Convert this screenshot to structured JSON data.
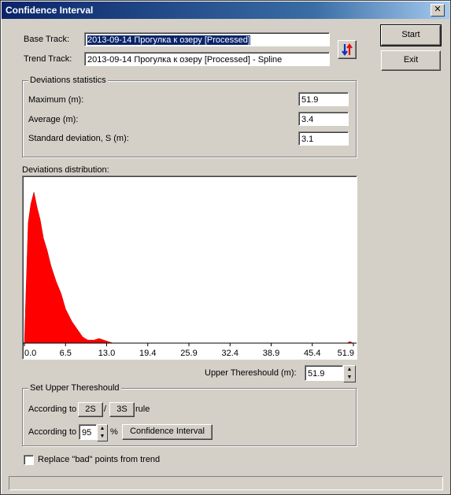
{
  "window": {
    "title": "Confidence Interval"
  },
  "tracks": {
    "base_label": "Base Track:",
    "base_value": "2013-09-14 Прогулка к озеру [Processed]",
    "trend_label": "Trend Track:",
    "trend_value": "2013-09-14 Прогулка к озеру [Processed] - Spline"
  },
  "buttons": {
    "start": "Start",
    "exit": "Exit"
  },
  "stats": {
    "title": "Deviations statistics",
    "maximum_label": "Maximum (m):",
    "maximum_value": "51.9",
    "average_label": "Average (m):",
    "average_value": "3.4",
    "stddev_label": "Standard deviation, S (m):",
    "stddev_value": "3.1"
  },
  "distribution": {
    "title": "Deviations distribution:"
  },
  "chart_data": {
    "type": "area",
    "xlabel": "",
    "ylabel": "",
    "x_ticks": [
      "0.0",
      "6.5",
      "13.0",
      "19.4",
      "25.9",
      "32.4",
      "38.9",
      "45.4",
      "51.9"
    ],
    "xlim": [
      0,
      51.9
    ],
    "color": "#ff0000",
    "x": [
      0.0,
      0.6,
      1.0,
      1.5,
      2.0,
      2.5,
      3.0,
      3.6,
      4.2,
      5.0,
      5.8,
      6.5,
      7.5,
      8.5,
      9.2,
      10.0,
      11.0,
      11.8,
      12.5,
      13.2,
      14.0,
      50.9,
      51.3,
      51.9
    ],
    "y": [
      0.0,
      0.78,
      0.9,
      0.98,
      0.88,
      0.8,
      0.68,
      0.6,
      0.5,
      0.4,
      0.32,
      0.22,
      0.14,
      0.08,
      0.04,
      0.02,
      0.02,
      0.03,
      0.02,
      0.01,
      0.0,
      0.0,
      0.01,
      0.0
    ]
  },
  "threshold": {
    "label": "Upper Thereshould (m):",
    "value": "51.9"
  },
  "set_upper": {
    "title": "Set Upper Thereshould",
    "according_to": "According to",
    "btn_2s": "2S",
    "slash": "/",
    "btn_3s": "3S",
    "rule": "rule",
    "according_to2": "According to",
    "percent_value": "95",
    "percent_sign": "%",
    "ci_button": "Confidence Interval"
  },
  "replace": {
    "label": "Replace \"bad\" points from trend",
    "checked": false
  }
}
